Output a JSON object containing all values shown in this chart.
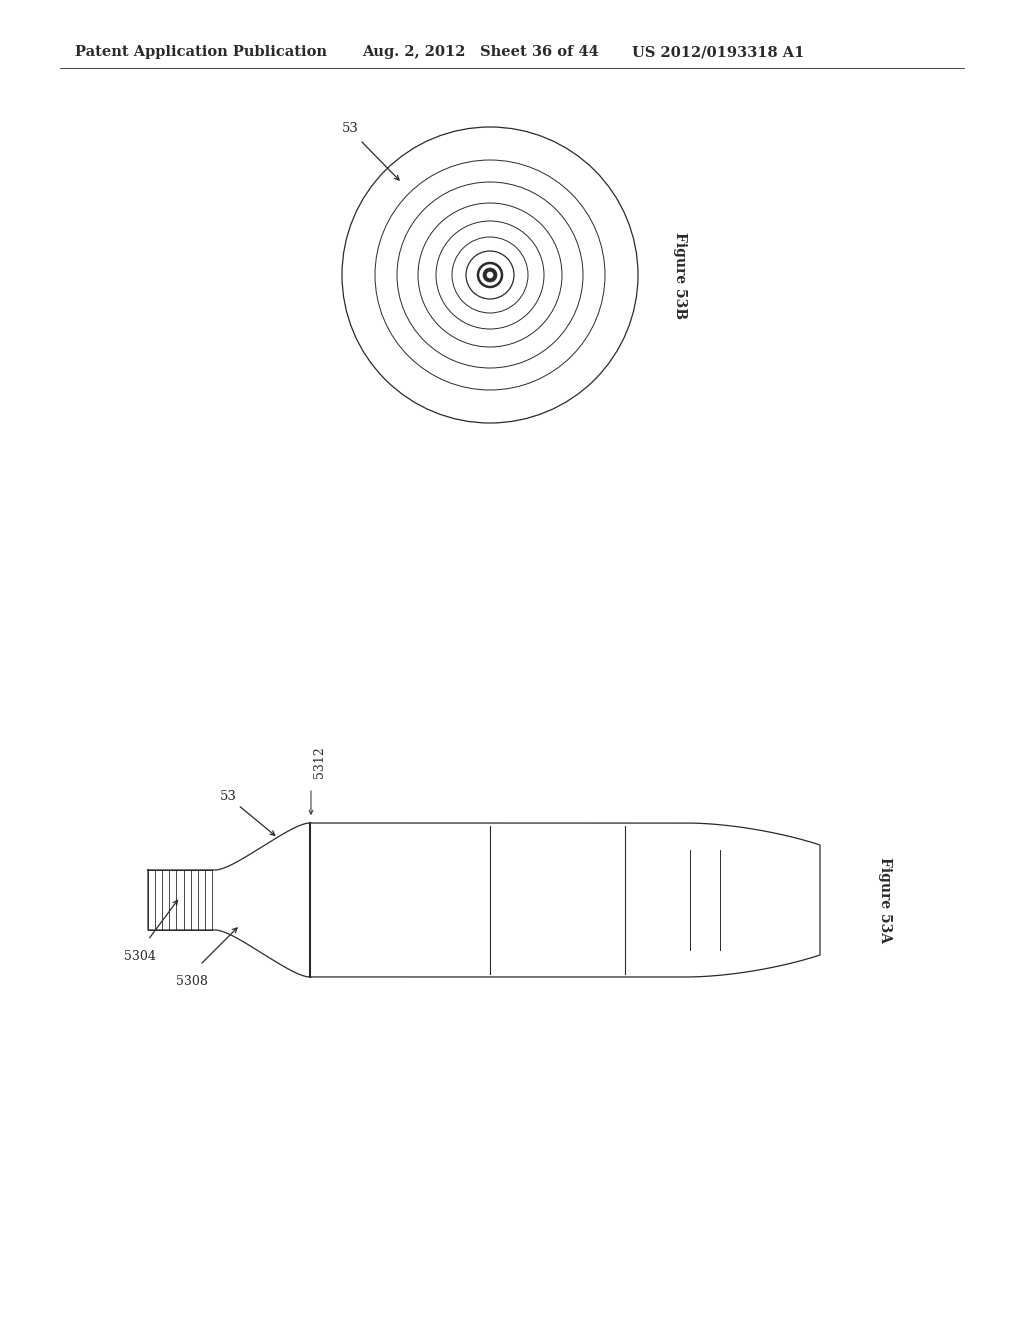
{
  "bg_color": "#ffffff",
  "line_color": "#2a2a2a",
  "header_text": "Patent Application Publication",
  "header_date": "Aug. 2, 2012",
  "header_sheet": "Sheet 36 of 44",
  "header_patent": "US 2012/0193318 A1",
  "fig53b_label": "Figure 53B",
  "fig53a_label": "Figure 53A",
  "label_53_top": "53",
  "label_53_bottom": "53",
  "label_5312": "5312",
  "label_5304": "5304",
  "label_5308": "5308",
  "radii": [
    148,
    115,
    93,
    72,
    54,
    38,
    24,
    12
  ],
  "lw_list": [
    0.9,
    0.7,
    0.7,
    0.7,
    0.7,
    0.7,
    0.9,
    1.8
  ]
}
